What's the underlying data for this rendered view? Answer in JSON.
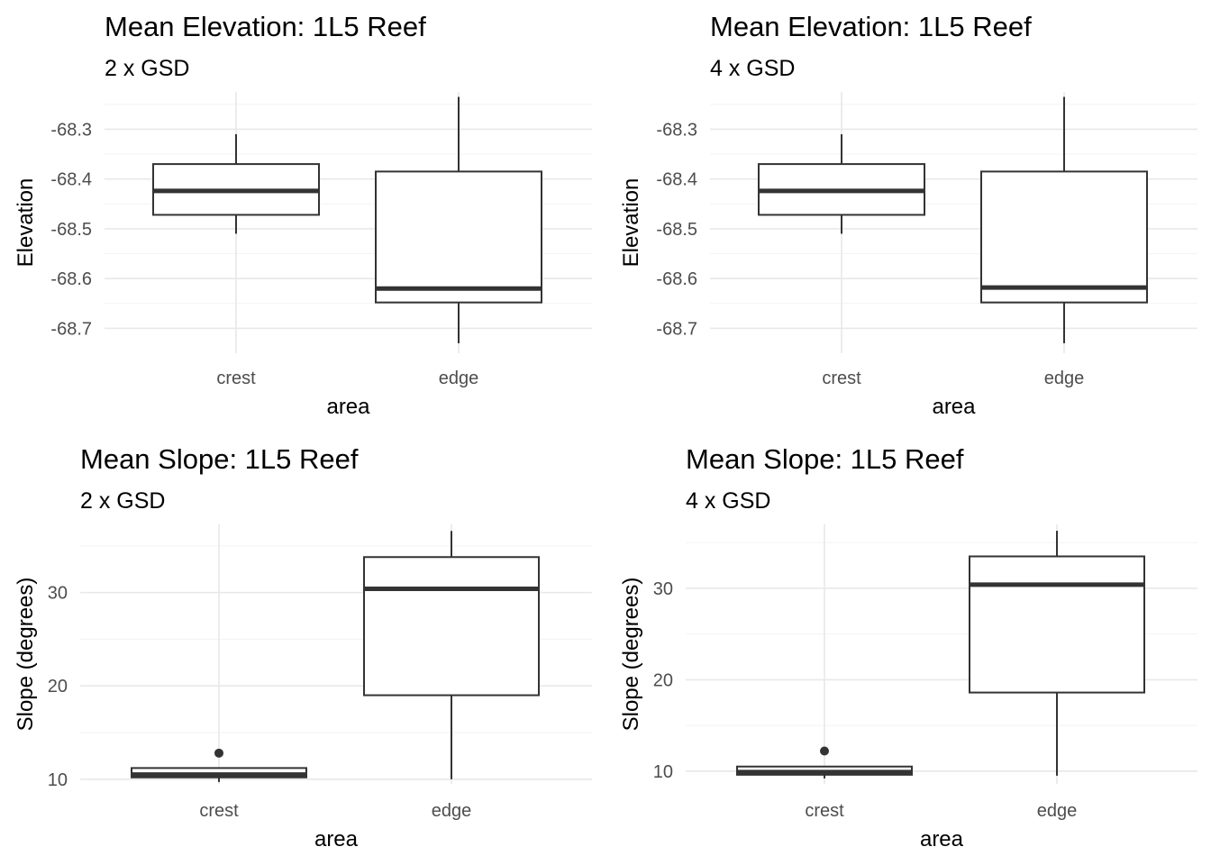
{
  "chart_data": [
    {
      "type": "box",
      "title": "Mean Elevation: 1L5 Reef",
      "subtitle": "2 x GSD",
      "xlabel": "area",
      "ylabel": "Elevation",
      "categories": [
        "crest",
        "edge"
      ],
      "boxes": [
        {
          "whisker_low": -68.51,
          "q1": -68.472,
          "median": -68.424,
          "q3": -68.37,
          "whisker_high": -68.31,
          "outliers": []
        },
        {
          "whisker_low": -68.73,
          "q1": -68.648,
          "median": -68.62,
          "q3": -68.385,
          "whisker_high": -68.235,
          "outliers": []
        }
      ],
      "ylim": [
        -68.75,
        -68.225
      ],
      "yticks": [
        -68.3,
        -68.4,
        -68.5,
        -68.6,
        -68.7
      ],
      "ytick_labels": [
        "-68.3",
        "-68.4",
        "-68.5",
        "-68.6",
        "-68.7"
      ],
      "grid": true
    },
    {
      "type": "box",
      "title": "Mean Elevation: 1L5 Reef",
      "subtitle": "4 x GSD",
      "xlabel": "area",
      "ylabel": "Elevation",
      "categories": [
        "crest",
        "edge"
      ],
      "boxes": [
        {
          "whisker_low": -68.51,
          "q1": -68.472,
          "median": -68.424,
          "q3": -68.37,
          "whisker_high": -68.31,
          "outliers": []
        },
        {
          "whisker_low": -68.73,
          "q1": -68.648,
          "median": -68.618,
          "q3": -68.385,
          "whisker_high": -68.235,
          "outliers": []
        }
      ],
      "ylim": [
        -68.75,
        -68.225
      ],
      "yticks": [
        -68.3,
        -68.4,
        -68.5,
        -68.6,
        -68.7
      ],
      "ytick_labels": [
        "-68.3",
        "-68.4",
        "-68.5",
        "-68.6",
        "-68.7"
      ],
      "grid": true
    },
    {
      "type": "box",
      "title": "Mean Slope: 1L5 Reef",
      "subtitle": "2 x GSD",
      "xlabel": "area",
      "ylabel": "Slope (degrees)",
      "categories": [
        "crest",
        "edge"
      ],
      "boxes": [
        {
          "whisker_low": 9.7,
          "q1": 10.2,
          "median": 10.5,
          "q3": 11.2,
          "whisker_high": 11.2,
          "outliers": [
            12.8
          ]
        },
        {
          "whisker_low": 10.0,
          "q1": 19.0,
          "median": 30.4,
          "q3": 33.8,
          "whisker_high": 36.6,
          "outliers": []
        }
      ],
      "ylim": [
        9.5,
        37.3
      ],
      "yticks": [
        10,
        20,
        30
      ],
      "ytick_labels": [
        "10",
        "20",
        "30"
      ],
      "grid": true
    },
    {
      "type": "box",
      "title": "Mean Slope: 1L5 Reef",
      "subtitle": "4 x GSD",
      "xlabel": "area",
      "ylabel": "Slope (degrees)",
      "categories": [
        "crest",
        "edge"
      ],
      "boxes": [
        {
          "whisker_low": 9.2,
          "q1": 9.6,
          "median": 9.9,
          "q3": 10.5,
          "whisker_high": 10.5,
          "outliers": [
            12.2
          ]
        },
        {
          "whisker_low": 9.5,
          "q1": 18.6,
          "median": 30.4,
          "q3": 33.5,
          "whisker_high": 36.3,
          "outliers": []
        }
      ],
      "ylim": [
        8.6,
        37.0
      ],
      "yticks": [
        10,
        20,
        30
      ],
      "ytick_labels": [
        "10",
        "20",
        "30"
      ],
      "grid": true
    }
  ]
}
